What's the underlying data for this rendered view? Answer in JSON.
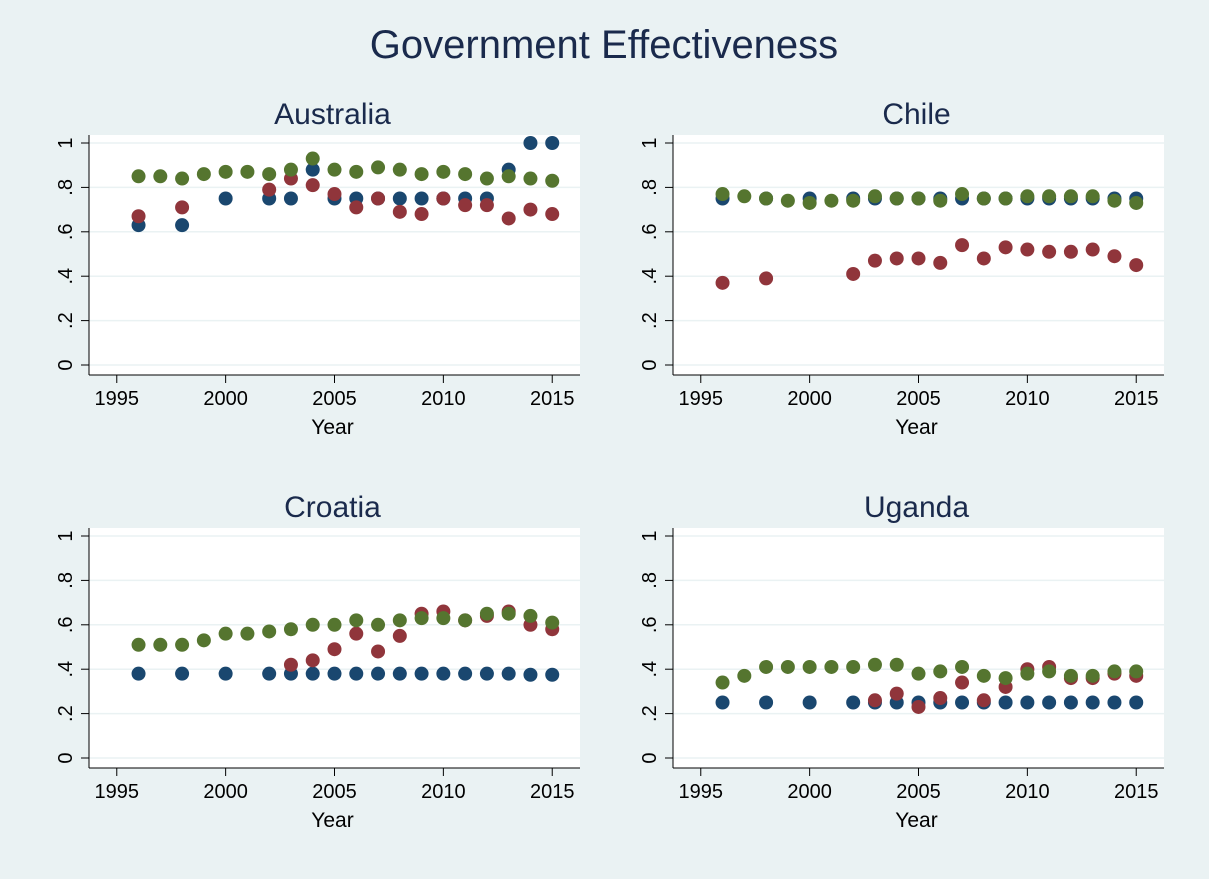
{
  "title": "Government Effectiveness",
  "colors": {
    "blue": "#1a476f",
    "red": "#90353b",
    "green": "#55752f"
  },
  "chart_data": {
    "type": "scatter",
    "xlabel": "Year",
    "xlim": [
      1994,
      2016
    ],
    "ylim": [
      0,
      1
    ],
    "xticks": [
      "1995",
      "2000",
      "2005",
      "2010",
      "2015"
    ],
    "yticks": [
      "0",
      ".2",
      ".4",
      ".6",
      ".8",
      "1"
    ],
    "grid": true,
    "panels": [
      {
        "title": "Australia",
        "series": [
          {
            "color": "#1a476f",
            "points": [
              [
                1996,
                0.63
              ],
              [
                1998,
                0.63
              ],
              [
                2000,
                0.75
              ],
              [
                2002,
                0.75
              ],
              [
                2003,
                0.75
              ],
              [
                2004,
                0.88
              ],
              [
                2005,
                0.75
              ],
              [
                2006,
                0.75
              ],
              [
                2007,
                0.75
              ],
              [
                2008,
                0.75
              ],
              [
                2009,
                0.75
              ],
              [
                2010,
                0.75
              ],
              [
                2011,
                0.75
              ],
              [
                2012,
                0.75
              ],
              [
                2013,
                0.88
              ],
              [
                2014,
                1.0
              ],
              [
                2015,
                1.0
              ]
            ]
          },
          {
            "color": "#90353b",
            "points": [
              [
                1996,
                0.67
              ],
              [
                1998,
                0.71
              ],
              [
                2002,
                0.79
              ],
              [
                2003,
                0.84
              ],
              [
                2004,
                0.81
              ],
              [
                2005,
                0.77
              ],
              [
                2006,
                0.71
              ],
              [
                2007,
                0.75
              ],
              [
                2008,
                0.69
              ],
              [
                2009,
                0.68
              ],
              [
                2010,
                0.75
              ],
              [
                2011,
                0.72
              ],
              [
                2012,
                0.72
              ],
              [
                2013,
                0.66
              ],
              [
                2014,
                0.7
              ],
              [
                2015,
                0.68
              ]
            ]
          },
          {
            "color": "#55752f",
            "points": [
              [
                1996,
                0.85
              ],
              [
                1997,
                0.85
              ],
              [
                1998,
                0.84
              ],
              [
                1999,
                0.86
              ],
              [
                2000,
                0.87
              ],
              [
                2001,
                0.87
              ],
              [
                2002,
                0.86
              ],
              [
                2003,
                0.88
              ],
              [
                2004,
                0.93
              ],
              [
                2005,
                0.88
              ],
              [
                2006,
                0.87
              ],
              [
                2007,
                0.89
              ],
              [
                2008,
                0.88
              ],
              [
                2009,
                0.86
              ],
              [
                2010,
                0.87
              ],
              [
                2011,
                0.86
              ],
              [
                2012,
                0.84
              ],
              [
                2013,
                0.85
              ],
              [
                2014,
                0.84
              ],
              [
                2015,
                0.83
              ]
            ]
          }
        ]
      },
      {
        "title": "Chile",
        "series": [
          {
            "color": "#1a476f",
            "points": [
              [
                1996,
                0.75
              ],
              [
                1998,
                0.75
              ],
              [
                2000,
                0.75
              ],
              [
                2002,
                0.75
              ],
              [
                2003,
                0.75
              ],
              [
                2004,
                0.75
              ],
              [
                2005,
                0.75
              ],
              [
                2006,
                0.75
              ],
              [
                2007,
                0.75
              ],
              [
                2008,
                0.75
              ],
              [
                2009,
                0.75
              ],
              [
                2010,
                0.75
              ],
              [
                2011,
                0.75
              ],
              [
                2012,
                0.75
              ],
              [
                2013,
                0.75
              ],
              [
                2014,
                0.75
              ],
              [
                2015,
                0.75
              ]
            ]
          },
          {
            "color": "#90353b",
            "points": [
              [
                1996,
                0.37
              ],
              [
                1998,
                0.39
              ],
              [
                2002,
                0.41
              ],
              [
                2003,
                0.47
              ],
              [
                2004,
                0.48
              ],
              [
                2005,
                0.48
              ],
              [
                2006,
                0.46
              ],
              [
                2007,
                0.54
              ],
              [
                2008,
                0.48
              ],
              [
                2009,
                0.53
              ],
              [
                2010,
                0.52
              ],
              [
                2011,
                0.51
              ],
              [
                2012,
                0.51
              ],
              [
                2013,
                0.52
              ],
              [
                2014,
                0.49
              ],
              [
                2015,
                0.45
              ]
            ]
          },
          {
            "color": "#55752f",
            "points": [
              [
                1996,
                0.77
              ],
              [
                1997,
                0.76
              ],
              [
                1998,
                0.75
              ],
              [
                1999,
                0.74
              ],
              [
                2000,
                0.73
              ],
              [
                2001,
                0.74
              ],
              [
                2002,
                0.74
              ],
              [
                2003,
                0.76
              ],
              [
                2004,
                0.75
              ],
              [
                2005,
                0.75
              ],
              [
                2006,
                0.74
              ],
              [
                2007,
                0.77
              ],
              [
                2008,
                0.75
              ],
              [
                2009,
                0.75
              ],
              [
                2010,
                0.76
              ],
              [
                2011,
                0.76
              ],
              [
                2012,
                0.76
              ],
              [
                2013,
                0.76
              ],
              [
                2014,
                0.74
              ],
              [
                2015,
                0.73
              ]
            ]
          }
        ]
      },
      {
        "title": "Croatia",
        "series": [
          {
            "color": "#1a476f",
            "points": [
              [
                1996,
                0.38
              ],
              [
                1998,
                0.38
              ],
              [
                2000,
                0.38
              ],
              [
                2002,
                0.38
              ],
              [
                2003,
                0.38
              ],
              [
                2004,
                0.38
              ],
              [
                2005,
                0.38
              ],
              [
                2006,
                0.38
              ],
              [
                2007,
                0.38
              ],
              [
                2008,
                0.38
              ],
              [
                2009,
                0.38
              ],
              [
                2010,
                0.38
              ],
              [
                2011,
                0.38
              ],
              [
                2012,
                0.38
              ],
              [
                2013,
                0.38
              ],
              [
                2014,
                0.375
              ],
              [
                2015,
                0.375
              ]
            ]
          },
          {
            "color": "#90353b",
            "points": [
              [
                2003,
                0.42
              ],
              [
                2004,
                0.44
              ],
              [
                2005,
                0.49
              ],
              [
                2006,
                0.56
              ],
              [
                2007,
                0.48
              ],
              [
                2008,
                0.55
              ],
              [
                2009,
                0.65
              ],
              [
                2010,
                0.66
              ],
              [
                2011,
                0.62
              ],
              [
                2012,
                0.64
              ],
              [
                2013,
                0.66
              ],
              [
                2014,
                0.6
              ],
              [
                2015,
                0.58
              ]
            ]
          },
          {
            "color": "#55752f",
            "points": [
              [
                1996,
                0.51
              ],
              [
                1997,
                0.51
              ],
              [
                1998,
                0.51
              ],
              [
                1999,
                0.53
              ],
              [
                2000,
                0.56
              ],
              [
                2001,
                0.56
              ],
              [
                2002,
                0.57
              ],
              [
                2003,
                0.58
              ],
              [
                2004,
                0.6
              ],
              [
                2005,
                0.6
              ],
              [
                2006,
                0.62
              ],
              [
                2007,
                0.6
              ],
              [
                2008,
                0.62
              ],
              [
                2009,
                0.63
              ],
              [
                2010,
                0.63
              ],
              [
                2011,
                0.62
              ],
              [
                2012,
                0.65
              ],
              [
                2013,
                0.65
              ],
              [
                2014,
                0.64
              ],
              [
                2015,
                0.61
              ]
            ]
          }
        ]
      },
      {
        "title": "Uganda",
        "series": [
          {
            "color": "#1a476f",
            "points": [
              [
                1996,
                0.25
              ],
              [
                1998,
                0.25
              ],
              [
                2000,
                0.25
              ],
              [
                2002,
                0.25
              ],
              [
                2003,
                0.25
              ],
              [
                2004,
                0.25
              ],
              [
                2005,
                0.25
              ],
              [
                2006,
                0.25
              ],
              [
                2007,
                0.25
              ],
              [
                2008,
                0.25
              ],
              [
                2009,
                0.25
              ],
              [
                2010,
                0.25
              ],
              [
                2011,
                0.25
              ],
              [
                2012,
                0.25
              ],
              [
                2013,
                0.25
              ],
              [
                2014,
                0.25
              ],
              [
                2015,
                0.25
              ]
            ]
          },
          {
            "color": "#90353b",
            "points": [
              [
                2003,
                0.26
              ],
              [
                2004,
                0.29
              ],
              [
                2005,
                0.23
              ],
              [
                2006,
                0.27
              ],
              [
                2007,
                0.34
              ],
              [
                2008,
                0.26
              ],
              [
                2009,
                0.32
              ],
              [
                2010,
                0.4
              ],
              [
                2011,
                0.41
              ],
              [
                2012,
                0.36
              ],
              [
                2013,
                0.36
              ],
              [
                2014,
                0.38
              ],
              [
                2015,
                0.37
              ]
            ]
          },
          {
            "color": "#55752f",
            "points": [
              [
                1996,
                0.34
              ],
              [
                1997,
                0.37
              ],
              [
                1998,
                0.41
              ],
              [
                1999,
                0.41
              ],
              [
                2000,
                0.41
              ],
              [
                2001,
                0.41
              ],
              [
                2002,
                0.41
              ],
              [
                2003,
                0.42
              ],
              [
                2004,
                0.42
              ],
              [
                2005,
                0.38
              ],
              [
                2006,
                0.39
              ],
              [
                2007,
                0.41
              ],
              [
                2008,
                0.37
              ],
              [
                2009,
                0.36
              ],
              [
                2010,
                0.38
              ],
              [
                2011,
                0.39
              ],
              [
                2012,
                0.37
              ],
              [
                2013,
                0.37
              ],
              [
                2014,
                0.39
              ],
              [
                2015,
                0.39
              ]
            ]
          }
        ]
      }
    ]
  }
}
